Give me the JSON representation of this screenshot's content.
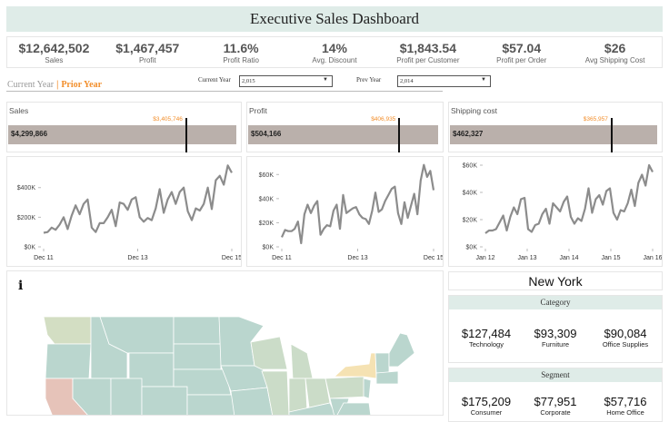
{
  "title": "Executive Sales Dashboard",
  "kpis": [
    {
      "value": "$12,642,502",
      "label": "Sales"
    },
    {
      "value": "$1,467,457",
      "label": "Profit"
    },
    {
      "value": "11.6%",
      "label": "Profit Ratio"
    },
    {
      "value": "14%",
      "label": "Avg. Discount"
    },
    {
      "value": "$1,843.54",
      "label": "Profit per Customer"
    },
    {
      "value": "$57.04",
      "label": "Profit per Order"
    },
    {
      "value": "$26",
      "label": "Avg Shipping Cost"
    }
  ],
  "toggle": {
    "current": "Current Year",
    "separator": "|",
    "prior": "Prior Year",
    "active": "Prior Year"
  },
  "filters": {
    "current_label": "Current Year",
    "current_value": "2,015",
    "prev_label": "Prev Year",
    "prev_value": "2,014"
  },
  "bullets": [
    {
      "title": "Sales",
      "value_label": "$4,299,866",
      "target_label": "$3,405,746",
      "value": 4299866,
      "target": 3405746
    },
    {
      "title": "Profit",
      "value_label": "$504,166",
      "target_label": "$406,935",
      "value": 504166,
      "target": 406935
    },
    {
      "title": "Shipping cost",
      "value_label": "$462,327",
      "target_label": "$365,957",
      "value": 462327,
      "target": 365957
    }
  ],
  "chart_data": [
    {
      "type": "line",
      "name": "sales-trend",
      "ylabel": "",
      "xlabel": "",
      "yticks": [
        "$0K",
        "$200K",
        "$400K"
      ],
      "ytick_values": [
        0,
        200,
        400
      ],
      "ylim": [
        0,
        570
      ],
      "xticks": [
        "Dec 11",
        "Dec 13",
        "Dec 15"
      ],
      "grid": false,
      "values": [
        95,
        100,
        130,
        115,
        150,
        200,
        120,
        210,
        280,
        220,
        290,
        320,
        130,
        100,
        160,
        160,
        200,
        250,
        140,
        300,
        290,
        250,
        320,
        335,
        200,
        170,
        195,
        180,
        260,
        390,
        230,
        320,
        370,
        290,
        370,
        400,
        240,
        180,
        260,
        245,
        290,
        400,
        255,
        450,
        480,
        420,
        550,
        500
      ]
    },
    {
      "type": "line",
      "name": "profit-trend",
      "yticks": [
        "$0K",
        "$20K",
        "$40K",
        "$60K"
      ],
      "ytick_values": [
        0,
        20,
        40,
        60
      ],
      "ylim": [
        0,
        70
      ],
      "xticks": [
        "Dec 11",
        "Dec 13",
        "Dec 15"
      ],
      "grid": false,
      "values": [
        8,
        14,
        13,
        13,
        15,
        21,
        3,
        27,
        35,
        28,
        34,
        38,
        10,
        15,
        18,
        17,
        30,
        35,
        15,
        43,
        28,
        30,
        32,
        33,
        27,
        24,
        23,
        19,
        30,
        45,
        29,
        31,
        38,
        43,
        48,
        50,
        28,
        19,
        37,
        24,
        34,
        44,
        27,
        55,
        68,
        58,
        63,
        47
      ]
    },
    {
      "type": "line",
      "name": "shipping-trend",
      "yticks": [
        "$0K",
        "$20K",
        "$40K",
        "$60K"
      ],
      "ytick_values": [
        0,
        20,
        40,
        60
      ],
      "ylim": [
        0,
        62
      ],
      "xticks": [
        "Jan 12",
        "Jan 13",
        "Jan 14",
        "Jan 15",
        "Jan 16"
      ],
      "grid": false,
      "values": [
        10,
        12,
        12,
        13,
        18,
        23,
        12,
        22,
        29,
        24,
        35,
        36,
        13,
        11,
        16,
        17,
        24,
        28,
        17,
        32,
        29,
        26,
        33,
        37,
        22,
        17,
        21,
        19,
        28,
        43,
        25,
        35,
        38,
        31,
        41,
        43,
        25,
        20,
        27,
        26,
        32,
        42,
        30,
        47,
        53,
        45,
        60,
        55
      ]
    }
  ],
  "map": {
    "info_icon": "i",
    "colors": {
      "base": "#bad6ce",
      "mid": "#cbdcc8",
      "high": "#d3dec3",
      "selected": "#f5e2b3",
      "low": "#e6c3b9"
    }
  },
  "detail": {
    "state": "New York",
    "category": {
      "header": "Category",
      "items": [
        {
          "value": "$127,484",
          "label": "Technology"
        },
        {
          "value": "$93,309",
          "label": "Furniture"
        },
        {
          "value": "$90,084",
          "label": "Office Supplies"
        }
      ]
    },
    "segment": {
      "header": "Segment",
      "items": [
        {
          "value": "$175,209",
          "label": "Consumer"
        },
        {
          "value": "$77,951",
          "label": "Corporate"
        },
        {
          "value": "$57,716",
          "label": "Home Office"
        }
      ]
    }
  },
  "colors": {
    "accent": "#f28e2b",
    "bar": "#bab0ab",
    "line": "#8c8c8c",
    "header_bg": "#dfece8"
  }
}
